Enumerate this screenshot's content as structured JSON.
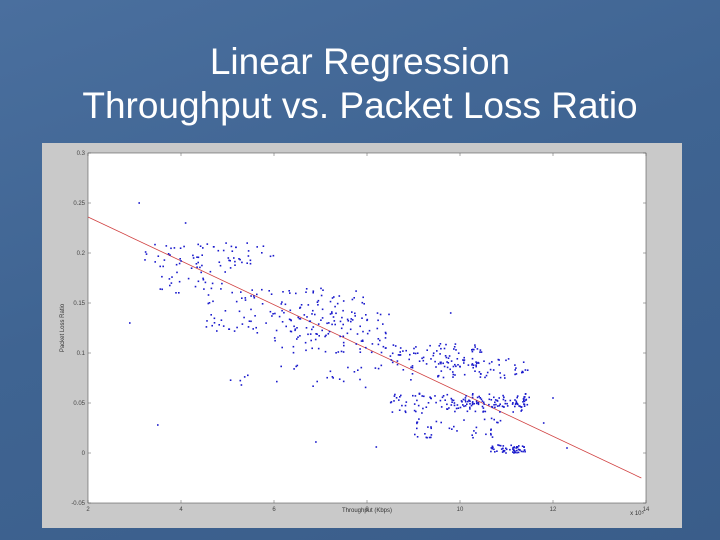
{
  "slide": {
    "title_line1": "Linear Regression",
    "title_line2": "Throughput vs. Packet Loss Ratio"
  },
  "chart_data": {
    "type": "scatter",
    "title": "",
    "xlabel": "Throughput (Kbps)",
    "ylabel": "Packet Loss Ratio",
    "x_multiplier_label": "x 10⁵",
    "xlim": [
      2,
      14
    ],
    "ylim": [
      -0.05,
      0.3
    ],
    "xticks": [
      2,
      4,
      6,
      8,
      10,
      12,
      14
    ],
    "xtick_labels": [
      "2",
      "4",
      "6",
      "8",
      "10",
      "12",
      "14"
    ],
    "yticks": [
      -0.05,
      0,
      0.05,
      0.1,
      0.15,
      0.2,
      0.25,
      0.3
    ],
    "ytick_labels": [
      "-0.05",
      "0",
      "0.05",
      "0.1",
      "0.15",
      "0.2",
      "0.25",
      "0.3"
    ],
    "grid": false,
    "colors": {
      "points": "#1a1acc",
      "fit_line": "#d04040",
      "plot_bg": "#ffffff",
      "figure_bg": "#c9c9c9"
    },
    "regression_line": {
      "x": [
        2,
        13.9
      ],
      "y": [
        0.236,
        -0.025
      ]
    },
    "clusters": [
      {
        "x": [
          3.2,
          6.0
        ],
        "y": [
          0.185,
          0.21
        ],
        "n": 60
      },
      {
        "x": [
          3.4,
          5.0
        ],
        "y": [
          0.16,
          0.19
        ],
        "n": 30
      },
      {
        "x": [
          4.5,
          8.0
        ],
        "y": [
          0.12,
          0.165
        ],
        "n": 120
      },
      {
        "x": [
          6.0,
          8.5
        ],
        "y": [
          0.1,
          0.14
        ],
        "n": 90
      },
      {
        "x": [
          8.5,
          10.5
        ],
        "y": [
          0.085,
          0.11
        ],
        "n": 80
      },
      {
        "x": [
          9.5,
          11.5
        ],
        "y": [
          0.075,
          0.095
        ],
        "n": 60
      },
      {
        "x": [
          8.5,
          11.5
        ],
        "y": [
          0.04,
          0.06
        ],
        "n": 120
      },
      {
        "x": [
          10.0,
          11.5
        ],
        "y": [
          0.046,
          0.056
        ],
        "n": 50
      },
      {
        "x": [
          9.0,
          11.0
        ],
        "y": [
          0.015,
          0.035
        ],
        "n": 40
      },
      {
        "x": [
          10.6,
          11.4
        ],
        "y": [
          0.0,
          0.008
        ],
        "n": 55
      },
      {
        "x": [
          5.0,
          9.0
        ],
        "y": [
          0.065,
          0.09
        ],
        "n": 30
      }
    ],
    "outliers": {
      "x": [
        3.1,
        3.5,
        5.3,
        6.9,
        7.5,
        8.2,
        12.3,
        12.0,
        4.1,
        2.9,
        9.8,
        11.8
      ],
      "y": [
        0.25,
        0.028,
        0.068,
        0.011,
        0.152,
        0.006,
        0.005,
        0.055,
        0.23,
        0.13,
        0.14,
        0.03
      ]
    }
  }
}
